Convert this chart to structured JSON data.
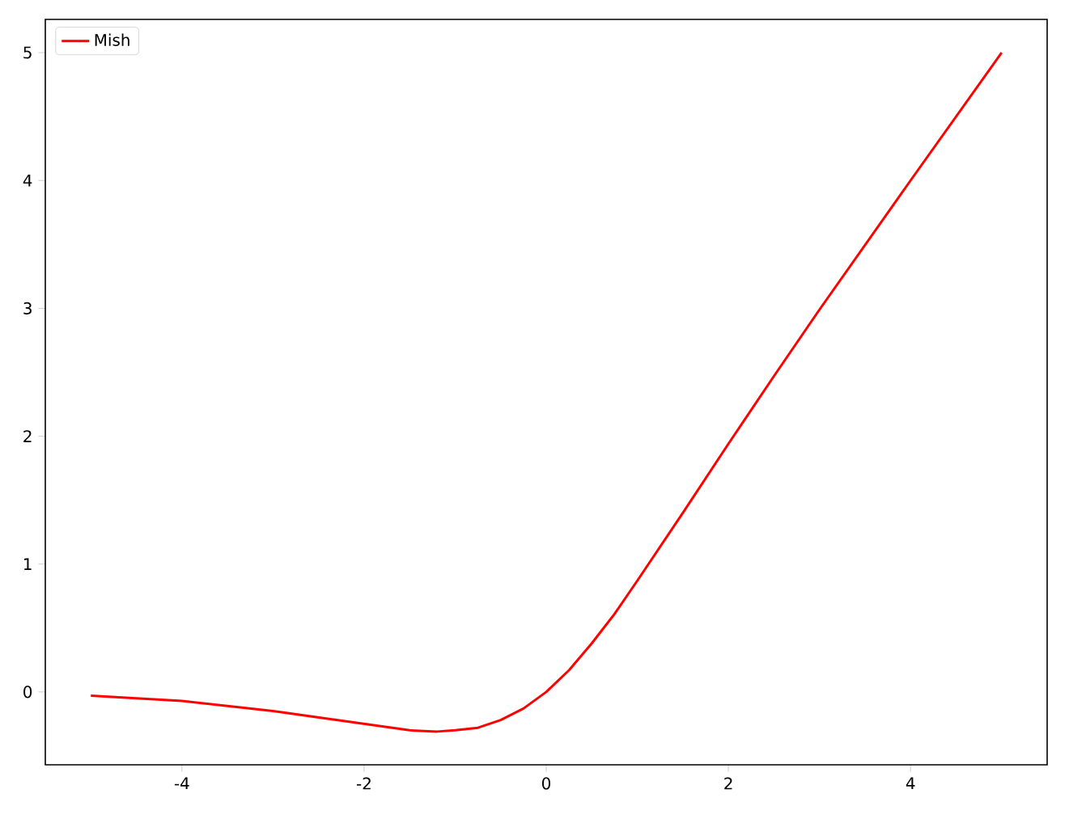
{
  "chart_data": {
    "type": "line",
    "xlim": [
      -5.5,
      5.5
    ],
    "ylim": [
      -0.57,
      5.26
    ],
    "xticks": [
      -4,
      -2,
      0,
      2,
      4
    ],
    "yticks": [
      0,
      1,
      2,
      3,
      4,
      5
    ],
    "legend": "top left",
    "grid": false,
    "series": [
      {
        "name": "Mish",
        "color": "#ff0000",
        "x": [
          -5,
          -4,
          -3,
          -2.5,
          -2,
          -1.5,
          -1.2,
          -1,
          -0.75,
          -0.5,
          -0.25,
          0,
          0.25,
          0.5,
          0.75,
          1,
          1.5,
          2,
          2.5,
          3,
          4,
          5
        ],
        "values": [
          -0.03,
          -0.07,
          -0.15,
          -0.2,
          -0.25,
          -0.3,
          -0.31,
          -0.3,
          -0.28,
          -0.22,
          -0.13,
          0,
          0.17,
          0.38,
          0.61,
          0.87,
          1.4,
          1.94,
          2.47,
          2.99,
          4.0,
          5.0
        ]
      }
    ]
  }
}
